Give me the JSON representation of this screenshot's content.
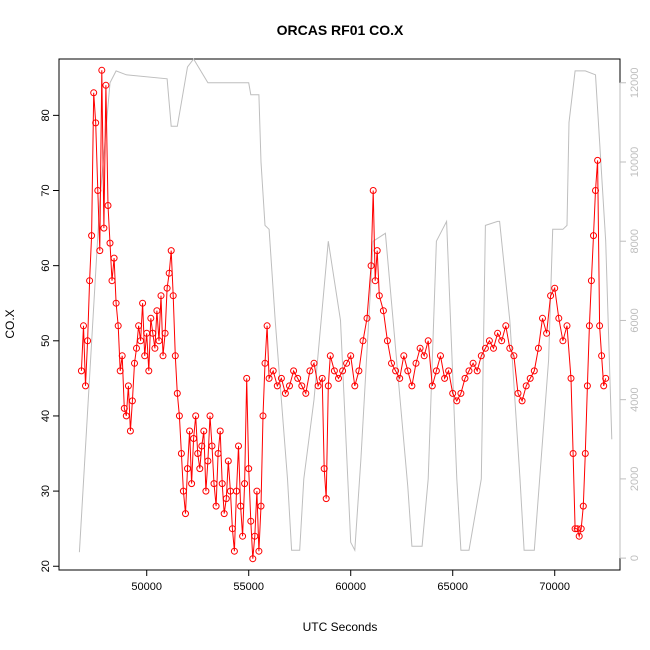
{
  "chart_data": {
    "type": "line",
    "title": "ORCAS RF01 CO.X",
    "xlabel": "UTC Seconds",
    "ylabel": "CO.X",
    "xlim": [
      45700,
      73200
    ],
    "ylim": [
      19.5,
      87.5
    ],
    "y2lim": [
      -300,
      12600
    ],
    "x_ticks": [
      50000,
      55000,
      60000,
      65000,
      70000
    ],
    "y_ticks": [
      20,
      30,
      40,
      50,
      60,
      70,
      80
    ],
    "y2_ticks": [
      0,
      2000,
      4000,
      6000,
      8000,
      10000,
      12000
    ],
    "grid": false,
    "series": [
      {
        "color": "#ff0000",
        "style": "line-and-circle-markers",
        "x": [
          46800,
          46900,
          47000,
          47100,
          47200,
          47300,
          47400,
          47500,
          47600,
          47700,
          47800,
          47900,
          48000,
          48100,
          48200,
          48300,
          48400,
          48500,
          48600,
          48700,
          48800,
          48900,
          49000,
          49100,
          49200,
          49300,
          49400,
          49500,
          49600,
          49700,
          49800,
          49900,
          50000,
          50100,
          50200,
          50300,
          50400,
          50500,
          50600,
          50700,
          50800,
          50900,
          51000,
          51100,
          51200,
          51300,
          51400,
          51500,
          51600,
          51700,
          51800,
          51900,
          52000,
          52100,
          52200,
          52300,
          52400,
          52500,
          52600,
          52700,
          52800,
          52900,
          53000,
          53100,
          53200,
          53300,
          53400,
          53500,
          53600,
          53700,
          53800,
          53900,
          54000,
          54100,
          54200,
          54300,
          54400,
          54500,
          54600,
          54700,
          54800,
          54900,
          55000,
          55100,
          55200,
          55300,
          55400,
          55500,
          55600,
          55700,
          55800,
          55900,
          56000,
          56200,
          56400,
          56600,
          56800,
          57000,
          57200,
          57400,
          57600,
          57800,
          58000,
          58200,
          58400,
          58600,
          58700,
          58800,
          58900,
          59000,
          59200,
          59400,
          59600,
          59800,
          60000,
          60200,
          60400,
          60600,
          60800,
          61000,
          61100,
          61200,
          61300,
          61400,
          61600,
          61800,
          62000,
          62200,
          62400,
          62600,
          62800,
          63000,
          63200,
          63400,
          63600,
          63800,
          64000,
          64200,
          64400,
          64600,
          64800,
          65000,
          65200,
          65400,
          65600,
          65800,
          66000,
          66200,
          66400,
          66600,
          66800,
          67000,
          67200,
          67400,
          67600,
          67800,
          68000,
          68200,
          68400,
          68600,
          68800,
          69000,
          69200,
          69400,
          69600,
          69800,
          70000,
          70200,
          70400,
          70600,
          70800,
          70900,
          71000,
          71100,
          71200,
          71300,
          71400,
          71500,
          71600,
          71700,
          71800,
          71900,
          72000,
          72100,
          72200,
          72300,
          72400,
          72500
        ],
        "y": [
          46,
          52,
          44,
          50,
          58,
          64,
          83,
          79,
          70,
          62,
          86,
          65,
          84,
          68,
          63,
          58,
          61,
          55,
          52,
          46,
          48,
          41,
          40,
          44,
          38,
          42,
          47,
          49,
          52,
          50,
          55,
          48,
          51,
          46,
          53,
          51,
          49,
          54,
          50,
          56,
          48,
          51,
          57,
          59,
          62,
          56,
          48,
          43,
          40,
          35,
          30,
          27,
          33,
          38,
          31,
          37,
          40,
          35,
          33,
          36,
          38,
          30,
          34,
          40,
          36,
          31,
          28,
          35,
          38,
          31,
          27,
          29,
          34,
          30,
          25,
          22,
          30,
          36,
          28,
          24,
          31,
          45,
          33,
          26,
          21,
          24,
          30,
          22,
          28,
          40,
          47,
          52,
          45,
          46,
          44,
          45,
          43,
          44,
          46,
          45,
          44,
          43,
          46,
          47,
          44,
          45,
          33,
          29,
          44,
          48,
          46,
          45,
          46,
          47,
          48,
          44,
          46,
          50,
          53,
          60,
          70,
          58,
          62,
          56,
          54,
          50,
          47,
          46,
          45,
          48,
          46,
          44,
          47,
          49,
          48,
          50,
          44,
          46,
          48,
          45,
          46,
          43,
          42,
          43,
          45,
          46,
          47,
          46,
          48,
          49,
          50,
          49,
          51,
          50,
          52,
          49,
          48,
          43,
          42,
          44,
          45,
          46,
          49,
          53,
          51,
          56,
          57,
          53,
          50,
          52,
          45,
          35,
          25,
          25,
          24,
          25,
          28,
          35,
          44,
          52,
          58,
          64,
          70,
          74,
          52,
          48,
          44,
          45
        ]
      },
      {
        "color": "#bebebe",
        "axis": "right",
        "style": "line",
        "x": [
          46700,
          47700,
          48200,
          48500,
          49000,
          51000,
          51200,
          51500,
          51700,
          52000,
          52300,
          53000,
          55000,
          55100,
          55500,
          55600,
          55800,
          56000,
          56300,
          56900,
          57100,
          57500,
          57700,
          58200,
          58900,
          59500,
          60000,
          60200,
          60500,
          61100,
          61700,
          62800,
          63000,
          63500,
          63800,
          64200,
          64700,
          65200,
          65400,
          65800,
          66400,
          66600,
          67200,
          67300,
          67800,
          68300,
          68500,
          69000,
          69700,
          69900,
          70400,
          70600,
          70700,
          71000,
          71300,
          71500,
          72000,
          72500,
          72800
        ],
        "y": [
          150,
          9000,
          12000,
          12300,
          12200,
          12100,
          10900,
          10900,
          11500,
          12400,
          12600,
          12000,
          12000,
          11700,
          11700,
          10000,
          8400,
          8300,
          6000,
          2000,
          200,
          200,
          2000,
          4000,
          8000,
          6000,
          400,
          200,
          2500,
          8000,
          8200,
          1800,
          300,
          300,
          2000,
          8000,
          8500,
          2000,
          200,
          200,
          2000,
          8400,
          8500,
          8500,
          6000,
          2000,
          200,
          200,
          5000,
          8300,
          8300,
          8400,
          11000,
          12300,
          12300,
          12300,
          12200,
          8000,
          3000
        ]
      }
    ]
  }
}
